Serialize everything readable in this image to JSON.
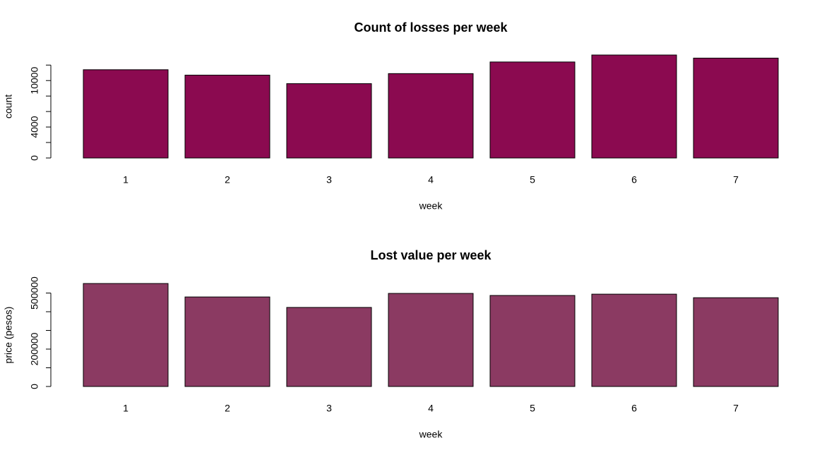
{
  "chart_data": [
    {
      "type": "bar",
      "title": "Count of losses per week",
      "xlabel": "week",
      "ylabel": "count",
      "categories": [
        "1",
        "2",
        "3",
        "4",
        "5",
        "6",
        "7"
      ],
      "values": [
        11400,
        10700,
        9600,
        10900,
        12400,
        13300,
        12900
      ],
      "color": "#8b0a50",
      "ylim": [
        0,
        13300
      ],
      "yticks": [
        0,
        {
          "value": 2000,
          "label": null
        },
        4000,
        {
          "value": 6000,
          "label": null
        },
        {
          "value": 8000,
          "label": null
        },
        10000,
        {
          "value": 12000,
          "label": null
        }
      ]
    },
    {
      "type": "bar",
      "title": "Lost value per week",
      "xlabel": "week",
      "ylabel": "price (pesos)",
      "categories": [
        "1",
        "2",
        "3",
        "4",
        "5",
        "6",
        "7"
      ],
      "values": [
        551000,
        479000,
        423000,
        498000,
        487000,
        494000,
        475000
      ],
      "color": "#8b3a62",
      "ylim": [
        0,
        551000
      ],
      "yticks": [
        0,
        {
          "value": 100000,
          "label": null
        },
        200000,
        {
          "value": 300000,
          "label": null
        },
        {
          "value": 400000,
          "label": null
        },
        500000
      ]
    }
  ]
}
